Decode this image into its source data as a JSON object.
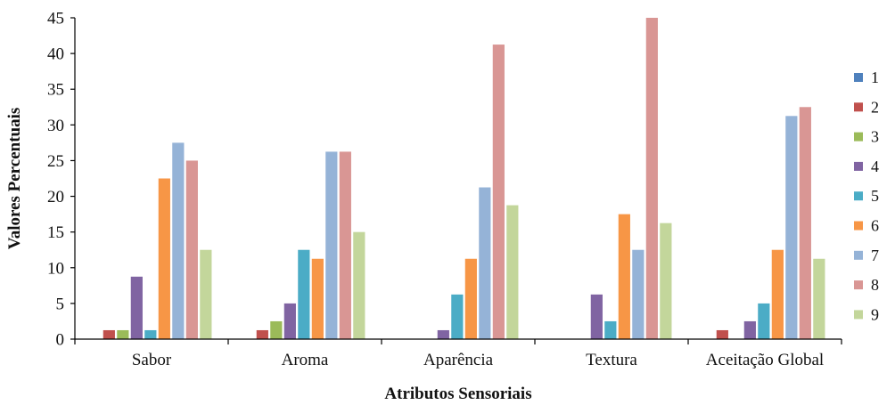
{
  "chart_data": {
    "type": "bar",
    "title": "",
    "xlabel": "Atributos Sensoriais",
    "ylabel": "Valores Percentuais",
    "ylim": [
      0,
      45
    ],
    "yticks": [
      0,
      5,
      10,
      15,
      20,
      25,
      30,
      35,
      40,
      45
    ],
    "grid": false,
    "legend_position": "right",
    "categories": [
      "Sabor",
      "Aroma",
      "Aparência",
      "Textura",
      "Aceitação Global"
    ],
    "series": [
      {
        "name": "1",
        "color": "#4f81bd",
        "values": [
          0,
          0,
          0,
          0,
          0
        ]
      },
      {
        "name": "2",
        "color": "#c0504d",
        "values": [
          1.25,
          1.25,
          0,
          0,
          1.25
        ]
      },
      {
        "name": "3",
        "color": "#9bbb59",
        "values": [
          1.25,
          2.5,
          0,
          0,
          0
        ]
      },
      {
        "name": "4",
        "color": "#8064a2",
        "values": [
          8.75,
          5,
          1.25,
          6.25,
          2.5
        ]
      },
      {
        "name": "5",
        "color": "#4bacc6",
        "values": [
          1.25,
          12.5,
          6.25,
          2.5,
          5
        ]
      },
      {
        "name": "6",
        "color": "#f79646",
        "values": [
          22.5,
          11.25,
          11.25,
          17.5,
          12.5
        ]
      },
      {
        "name": "7",
        "color": "#95b3d7",
        "values": [
          27.5,
          26.25,
          21.25,
          12.5,
          31.25
        ]
      },
      {
        "name": "8",
        "color": "#d99694",
        "values": [
          25,
          26.25,
          41.25,
          45,
          32.5
        ]
      },
      {
        "name": "9",
        "color": "#c3d69b",
        "values": [
          12.5,
          15,
          18.75,
          16.25,
          11.25
        ]
      }
    ]
  }
}
